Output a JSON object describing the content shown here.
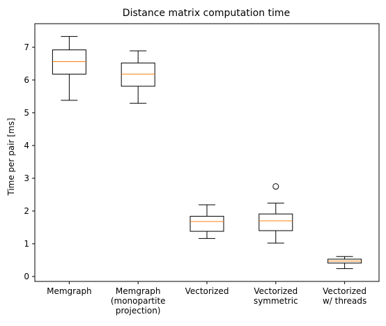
{
  "chart_data": {
    "type": "box",
    "title": "Distance matrix computation time",
    "xlabel": "",
    "ylabel": "Time per pair [ms]",
    "ylim": [
      -0.15,
      7.72
    ],
    "yticks": [
      0,
      1,
      2,
      3,
      4,
      5,
      6,
      7
    ],
    "grid": false,
    "categories": [
      [
        "Memgraph"
      ],
      [
        "Memgraph",
        "(monopartite",
        "projection)"
      ],
      [
        "Vectorized"
      ],
      [
        "Vectorized",
        "symmetric"
      ],
      [
        "Vectorized",
        "w/ threads"
      ]
    ],
    "boxes": [
      {
        "whisker_low": 5.38,
        "q1": 6.18,
        "median": 6.56,
        "q3": 6.92,
        "whisker_high": 7.33,
        "outliers": []
      },
      {
        "whisker_low": 5.29,
        "q1": 5.81,
        "median": 6.18,
        "q3": 6.52,
        "whisker_high": 6.89,
        "outliers": []
      },
      {
        "whisker_low": 1.16,
        "q1": 1.38,
        "median": 1.68,
        "q3": 1.84,
        "whisker_high": 2.19,
        "outliers": []
      },
      {
        "whisker_low": 1.02,
        "q1": 1.4,
        "median": 1.7,
        "q3": 1.91,
        "whisker_high": 2.24,
        "outliers": [
          2.75
        ]
      },
      {
        "whisker_low": 0.24,
        "q1": 0.41,
        "median": 0.47,
        "q3": 0.53,
        "whisker_high": 0.61,
        "outliers": []
      }
    ],
    "colors": {
      "box": "#000000",
      "median": "#ff7f0e"
    }
  }
}
